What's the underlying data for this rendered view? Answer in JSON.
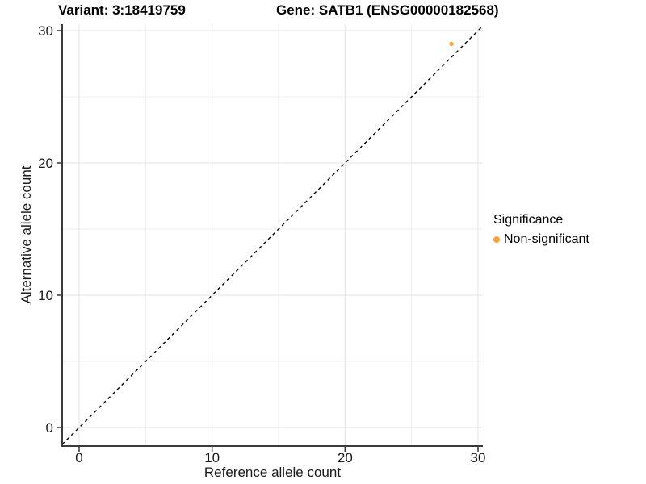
{
  "titles": {
    "variant": "Variant: 3:18419759",
    "gene": "Gene: SATB1 (ENSG00000182568)"
  },
  "legend": {
    "title": "Significance",
    "items": [
      {
        "label": "Non-significant",
        "color": "#F9A43B"
      }
    ]
  },
  "colors": {
    "point": "#F9A43B",
    "axis_line": "#3a3a3a",
    "tick_mark": "#333333",
    "tick_label": "#1a1a1a",
    "grid_major": "#e3e3e3",
    "grid_minor": "#efefef",
    "reference_line": "#000000",
    "background": "#ffffff"
  },
  "chart_data": {
    "type": "scatter",
    "title": "Variant: 3:18419759   Gene: SATB1 (ENSG00000182568)",
    "xlabel": "Reference allele count",
    "ylabel": "Alternative allele count",
    "xlim": [
      0,
      30
    ],
    "ylim": [
      0,
      30
    ],
    "x_ticks": [
      0,
      10,
      20,
      30
    ],
    "y_ticks": [
      0,
      10,
      20,
      30
    ],
    "x_minor_ticks": [
      5,
      15,
      25
    ],
    "y_minor_ticks": [
      5,
      15,
      25
    ],
    "grid": "on",
    "legend_position": "right",
    "legend_title": "Significance",
    "reference_line": {
      "style": "dashed",
      "slope": 1,
      "intercept": 0
    },
    "series": [
      {
        "name": "Non-significant",
        "color": "#F9A43B",
        "points": [
          [
            28,
            29
          ]
        ]
      }
    ]
  }
}
